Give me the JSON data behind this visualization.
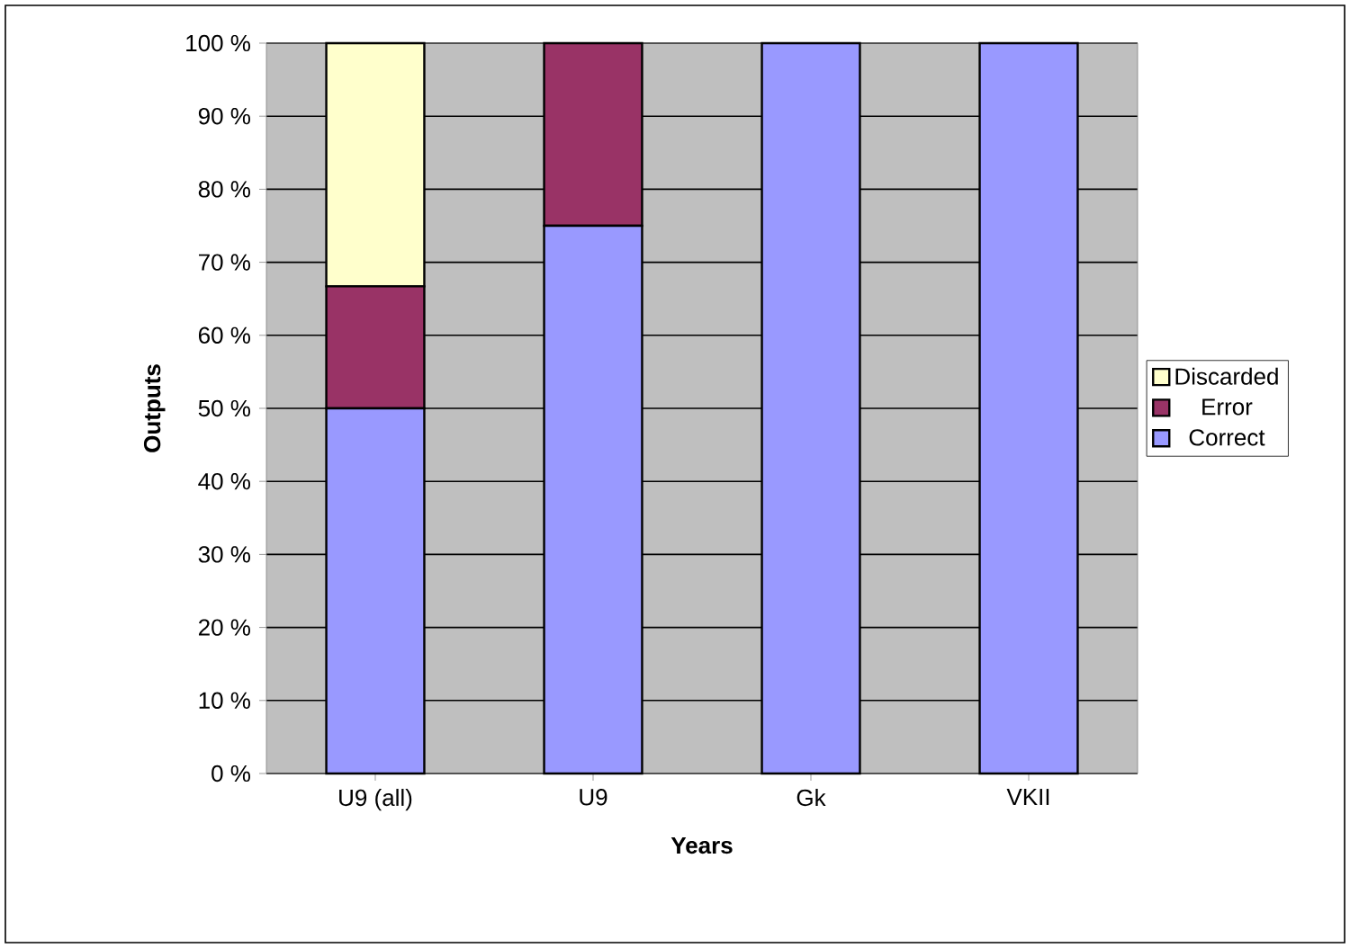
{
  "chart_data": {
    "type": "bar",
    "stacked": true,
    "xlabel": "Years",
    "ylabel": "Outputs",
    "categories": [
      "U9 (all)",
      "U9",
      "Gk",
      "VKII"
    ],
    "series": [
      {
        "name": "Correct",
        "color": "#9999ff",
        "values": [
          50,
          75,
          100,
          100
        ]
      },
      {
        "name": "Error",
        "color": "#993366",
        "values": [
          16.7,
          25,
          0,
          0
        ]
      },
      {
        "name": "Discarded",
        "color": "#ffffcc",
        "values": [
          33.3,
          0,
          0,
          0
        ]
      }
    ],
    "ylim": [
      0,
      100
    ],
    "yticks": [
      {
        "value": 0,
        "label": "0 %"
      },
      {
        "value": 10,
        "label": "10 %"
      },
      {
        "value": 20,
        "label": "20 %"
      },
      {
        "value": 30,
        "label": "30 %"
      },
      {
        "value": 40,
        "label": "40 %"
      },
      {
        "value": 50,
        "label": "50 %"
      },
      {
        "value": 60,
        "label": "60 %"
      },
      {
        "value": 70,
        "label": "70 %"
      },
      {
        "value": 80,
        "label": "80 %"
      },
      {
        "value": 90,
        "label": "90 %"
      },
      {
        "value": 100,
        "label": "100 %"
      }
    ],
    "grid": "y",
    "legend": "right"
  }
}
